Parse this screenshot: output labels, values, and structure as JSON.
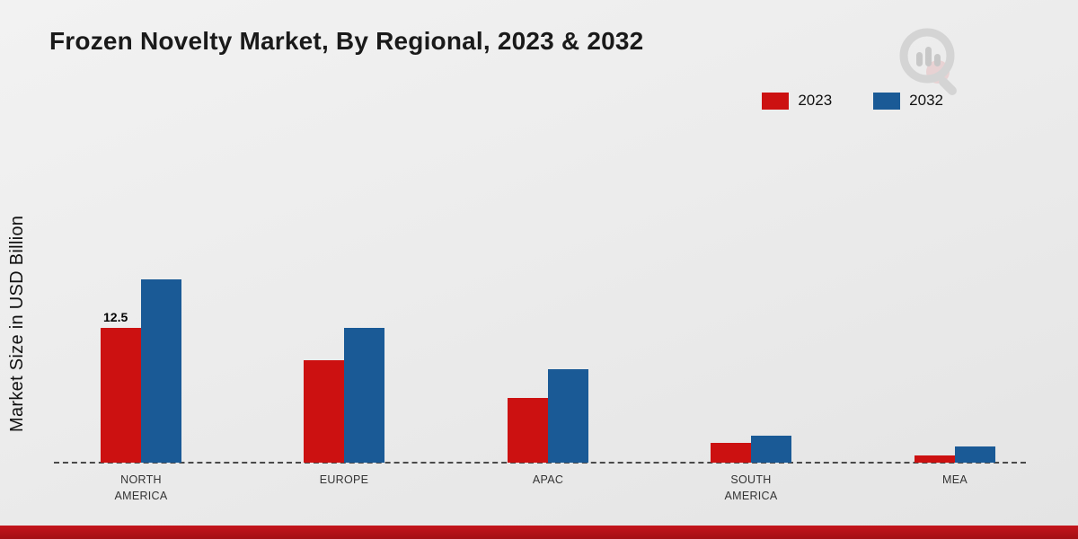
{
  "title": "Frozen Novelty Market, By Regional, 2023 & 2032",
  "ylabel": "Market Size in USD Billion",
  "legend": [
    {
      "label": "2023",
      "color": "#cc1111"
    },
    {
      "label": "2032",
      "color": "#1a5a96"
    }
  ],
  "chart_data": {
    "type": "bar",
    "title": "Frozen Novelty Market, By Regional, 2023 & 2032",
    "ylabel": "Market Size in USD Billion",
    "xlabel": "",
    "categories": [
      "NORTH AMERICA",
      "EUROPE",
      "APAC",
      "SOUTH AMERICA",
      "MEA"
    ],
    "category_lines": [
      [
        "NORTH",
        "AMERICA"
      ],
      [
        "EUROPE"
      ],
      [
        "APAC"
      ],
      [
        "SOUTH",
        "AMERICA"
      ],
      [
        "MEA"
      ]
    ],
    "series": [
      {
        "name": "2023",
        "color": "#cc1111",
        "values": [
          12.5,
          9.5,
          6.0,
          1.8,
          0.7
        ]
      },
      {
        "name": "2032",
        "color": "#1a5a96",
        "values": [
          17.0,
          12.5,
          8.7,
          2.5,
          1.5
        ]
      }
    ],
    "data_labels": [
      {
        "series": "2023",
        "category": "NORTH AMERICA",
        "text": "12.5"
      }
    ],
    "ylim": [
      0,
      18
    ],
    "grid": false,
    "baseline_style": "dashed",
    "legend_position": "top-right"
  }
}
